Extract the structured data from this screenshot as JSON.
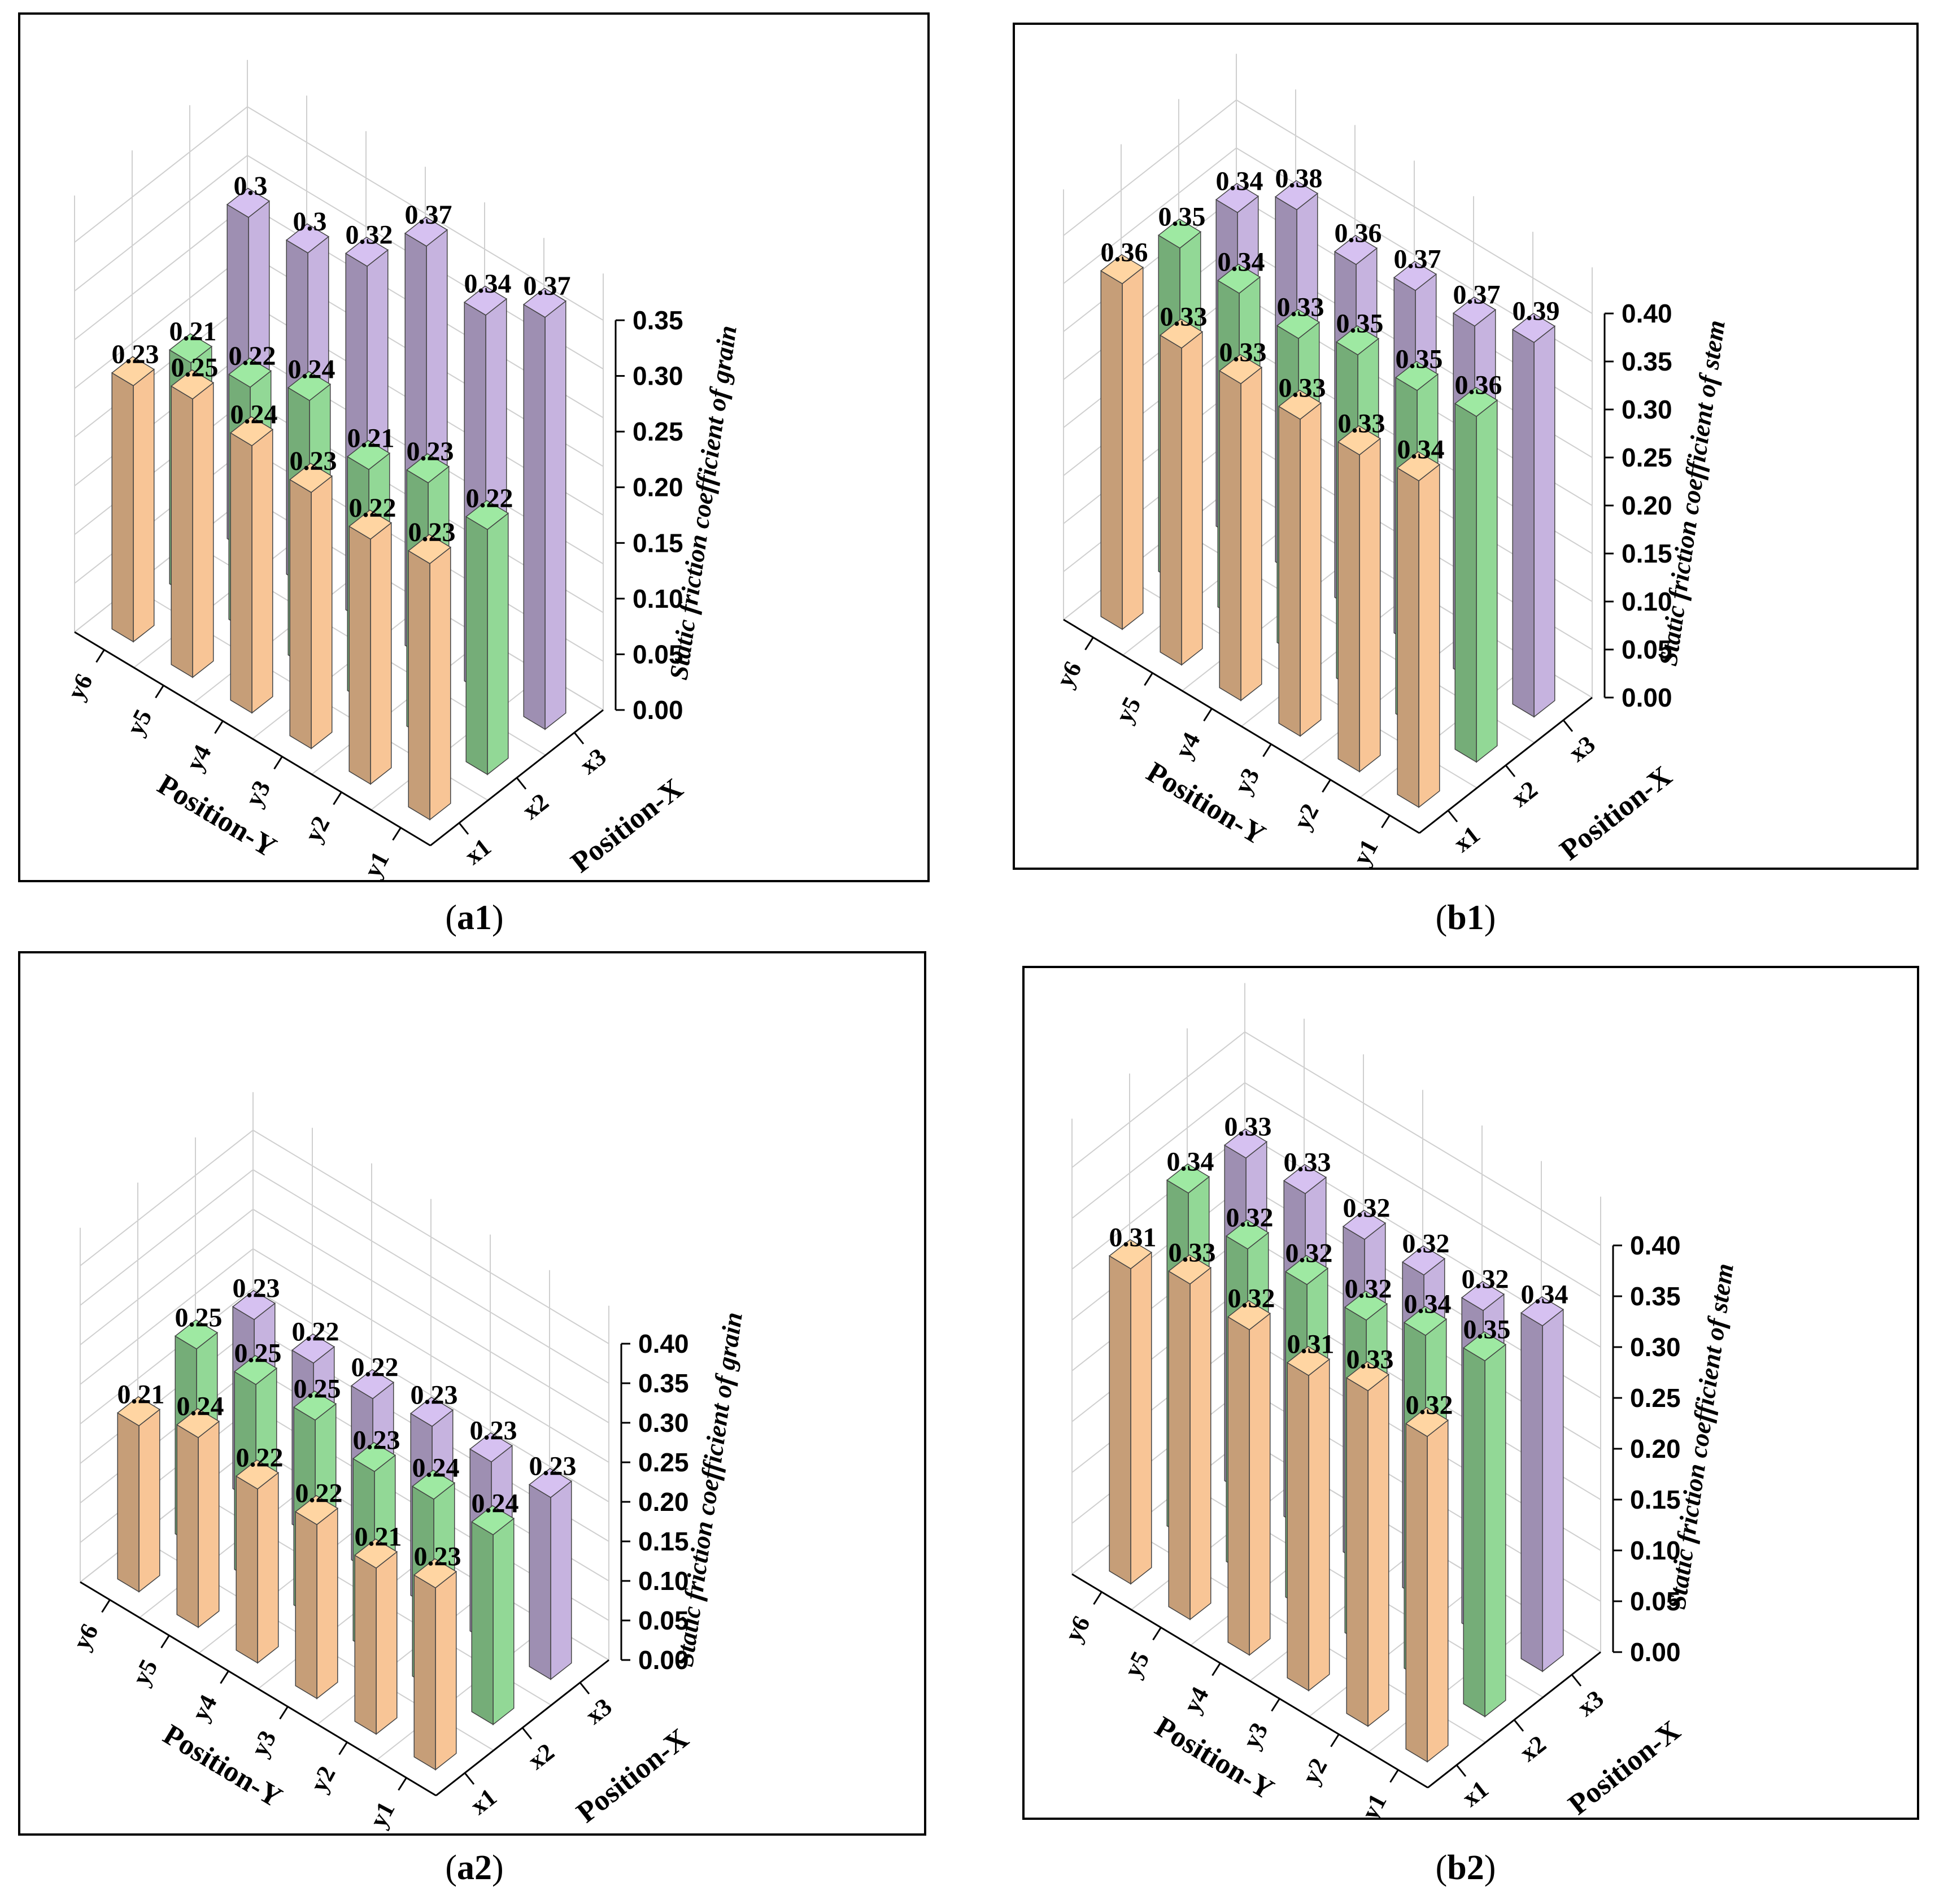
{
  "colors": {
    "x1": "#f8c596",
    "x2": "#92d896",
    "x3": "#c6b3df",
    "frame": "#000000",
    "grid": "#cfcfcf",
    "axis": "#000000"
  },
  "chart_data": [
    {
      "panel": "a1",
      "type": "bar3d",
      "caption_id": "a1",
      "zlabel": "Static friction coefficient of grain",
      "xlabel": "Position-X",
      "ylabel": "Position-Y",
      "x_categories": [
        "x1",
        "x2",
        "x3"
      ],
      "y_categories": [
        "y6",
        "y5",
        "y4",
        "y3",
        "y2",
        "y1"
      ],
      "zticks": [
        "0.00",
        "0.05",
        "0.10",
        "0.15",
        "0.20",
        "0.25",
        "0.30",
        "0.35"
      ],
      "zlim": [
        0,
        0.35
      ],
      "series": [
        {
          "name": "x1",
          "values": [
            0.23,
            0.25,
            0.24,
            0.23,
            0.22,
            0.23
          ],
          "labels": [
            "0.23",
            "0.25",
            "0.24",
            "0.23",
            "0.22",
            "0.23"
          ]
        },
        {
          "name": "x2",
          "values": [
            0.21,
            0.22,
            0.24,
            0.21,
            0.23,
            0.22
          ],
          "labels": [
            "0.21",
            "0.22",
            "0.24",
            "0.21",
            "0.23",
            "0.22"
          ]
        },
        {
          "name": "x3",
          "values": [
            0.3,
            0.3,
            0.32,
            0.37,
            0.34,
            0.37
          ],
          "labels": [
            "0.3",
            "0.3",
            "0.32",
            "0.37",
            "0.34",
            "0.37"
          ]
        }
      ]
    },
    {
      "panel": "b1",
      "type": "bar3d",
      "caption_id": "b1",
      "zlabel": "Static friction coefficient of stem",
      "xlabel": "Position-X",
      "ylabel": "Position-Y",
      "x_categories": [
        "x1",
        "x2",
        "x3"
      ],
      "y_categories": [
        "y6",
        "y5",
        "y4",
        "y3",
        "y2",
        "y1"
      ],
      "zticks": [
        "0.00",
        "0.05",
        "0.10",
        "0.15",
        "0.20",
        "0.25",
        "0.30",
        "0.35",
        "0.40"
      ],
      "zlim": [
        0,
        0.4
      ],
      "series": [
        {
          "name": "x1",
          "values": [
            0.36,
            0.33,
            0.33,
            0.33,
            0.33,
            0.34
          ],
          "labels": [
            "0.36",
            "0.33",
            "0.33",
            "0.33",
            "0.33",
            "0.34"
          ]
        },
        {
          "name": "x2",
          "values": [
            0.35,
            0.34,
            0.33,
            0.35,
            0.35,
            0.36
          ],
          "labels": [
            "0.35",
            "0.34",
            "0.33",
            "0.35",
            "0.35",
            "0.36"
          ]
        },
        {
          "name": "x3",
          "values": [
            0.34,
            0.38,
            0.36,
            0.37,
            0.37,
            0.39
          ],
          "labels": [
            "0.34",
            "0.38",
            "0.36",
            "0.37",
            "0.37",
            "0.39"
          ]
        }
      ]
    },
    {
      "panel": "a2",
      "type": "bar3d",
      "caption_id": "a2",
      "zlabel": "Static friction coefficient of grain",
      "xlabel": "Position-X",
      "ylabel": "Position-Y",
      "x_categories": [
        "x1",
        "x2",
        "x3"
      ],
      "y_categories": [
        "y6",
        "y5",
        "y4",
        "y3",
        "y2",
        "y1"
      ],
      "zticks": [
        "0.00",
        "0.05",
        "0.10",
        "0.15",
        "0.20",
        "0.25",
        "0.30",
        "0.35",
        "0.40"
      ],
      "zlim": [
        0,
        0.4
      ],
      "series": [
        {
          "name": "x1",
          "values": [
            0.21,
            0.24,
            0.22,
            0.22,
            0.21,
            0.23
          ],
          "labels": [
            "0.21",
            "0.24",
            "0.22",
            "0.22",
            "0.21",
            "0.23"
          ]
        },
        {
          "name": "x2",
          "values": [
            0.25,
            0.25,
            0.25,
            0.23,
            0.24,
            0.24
          ],
          "labels": [
            "0.25",
            "0.25",
            "0.25",
            "0.23",
            "0.24",
            "0.24"
          ]
        },
        {
          "name": "x3",
          "values": [
            0.23,
            0.22,
            0.22,
            0.23,
            0.23,
            0.23
          ],
          "labels": [
            "0.23",
            "0.22",
            "0.22",
            "0.23",
            "0.23",
            "0.23"
          ]
        }
      ]
    },
    {
      "panel": "b2",
      "type": "bar3d",
      "caption_id": "b2",
      "zlabel": "Static friction coefficient of stem",
      "xlabel": "Position-X",
      "ylabel": "Position-Y",
      "x_categories": [
        "x1",
        "x2",
        "x3"
      ],
      "y_categories": [
        "y6",
        "y5",
        "y4",
        "y3",
        "y2",
        "y1"
      ],
      "zticks": [
        "0.00",
        "0.05",
        "0.10",
        "0.15",
        "0.20",
        "0.25",
        "0.30",
        "0.35",
        "0.40"
      ],
      "zlim": [
        0,
        0.4
      ],
      "series": [
        {
          "name": "x1",
          "values": [
            0.31,
            0.33,
            0.32,
            0.31,
            0.33,
            0.32
          ],
          "labels": [
            "0.31",
            "0.33",
            "0.32",
            "0.31",
            "0.33",
            "0.32"
          ]
        },
        {
          "name": "x2",
          "values": [
            0.34,
            0.32,
            0.32,
            0.32,
            0.34,
            0.35
          ],
          "labels": [
            "0.34",
            "0.32",
            "0.32",
            "0.32",
            "0.34",
            "0.35"
          ]
        },
        {
          "name": "x3",
          "values": [
            0.33,
            0.33,
            0.32,
            0.32,
            0.32,
            0.34
          ],
          "labels": [
            "0.33",
            "0.33",
            "0.32",
            "0.32",
            "0.32",
            "0.34"
          ]
        }
      ]
    }
  ],
  "captions": {
    "a1": {
      "open": "(",
      "id": "a1",
      "close": ")"
    },
    "b1": {
      "open": "(",
      "id": "b1",
      "close": ")"
    },
    "a2": {
      "open": "(",
      "id": "a2",
      "close": ")"
    },
    "b2": {
      "open": "(",
      "id": "b2",
      "close": ")"
    }
  }
}
